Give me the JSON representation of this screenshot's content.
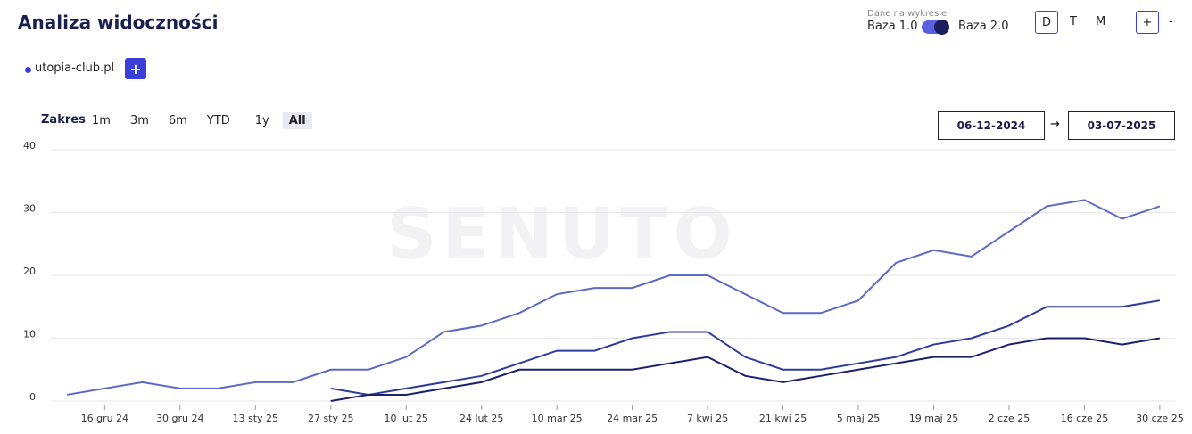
{
  "ui": {
    "title": "Analiza widoczności",
    "data_label": "Dane na wykresie",
    "base1": "Baza 1.0",
    "base2": "Baza 2.0",
    "granularity": [
      "D",
      "T",
      "M"
    ],
    "zoom_in": "+",
    "zoom_out": "-",
    "domain": "utopia-club.pl",
    "add": "+",
    "range_label": "Zakres",
    "ranges": [
      "1m",
      "3m",
      "6m",
      "YTD",
      "1y",
      "All"
    ],
    "date_from": "06-12-2024",
    "arrow": "→",
    "date_to": "03-07-2025",
    "watermark": "SENUTO"
  },
  "chart_data": {
    "type": "line",
    "categories": [
      null,
      "16 gru 24",
      null,
      "30 gru 24",
      null,
      "13 sty 25",
      null,
      "27 sty 25",
      null,
      "10 lut 25",
      null,
      "24 lut 25",
      null,
      "10 mar 25",
      null,
      "24 mar 25",
      null,
      "7 kwi 25",
      null,
      "21 kwi 25",
      null,
      "5 maj 25",
      null,
      "19 maj 25",
      null,
      "2 cze 25",
      null,
      "16 cze 25",
      null,
      "30 cze 25"
    ],
    "series": [
      {
        "color": "#5b6bc4",
        "values": [
          1,
          2,
          3,
          2,
          2,
          3,
          3,
          5,
          5,
          7,
          11,
          12,
          14,
          17,
          18,
          18,
          20,
          20,
          17,
          14,
          14,
          16,
          22,
          24,
          23,
          27,
          31,
          32,
          29,
          31
        ]
      },
      {
        "color": "#2e3b9c",
        "values": [
          null,
          null,
          null,
          null,
          null,
          null,
          null,
          2,
          1,
          2,
          3,
          4,
          6,
          8,
          8,
          10,
          11,
          11,
          7,
          5,
          5,
          6,
          7,
          9,
          10,
          12,
          15,
          15,
          15,
          16
        ]
      },
      {
        "color": "#1b206e",
        "values": [
          null,
          null,
          null,
          null,
          null,
          null,
          null,
          0,
          1,
          1,
          2,
          3,
          5,
          5,
          5,
          5,
          6,
          7,
          4,
          3,
          4,
          5,
          6,
          7,
          7,
          9,
          10,
          10,
          9,
          10
        ]
      }
    ],
    "ylim": [
      0,
      40
    ],
    "yticks": [
      0,
      10,
      20,
      30,
      40
    ],
    "grid": true
  }
}
